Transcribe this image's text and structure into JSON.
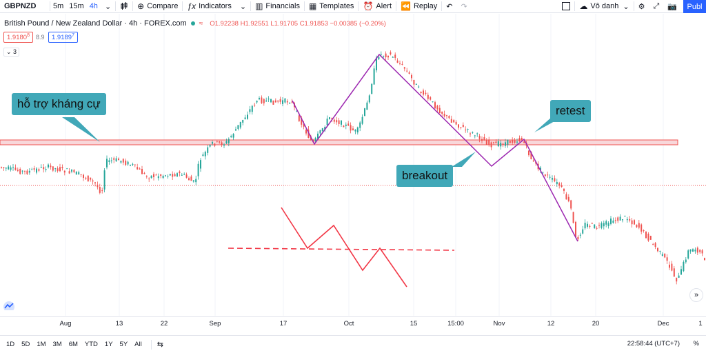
{
  "toolbar": {
    "symbol": "GBPNZD",
    "timeframes": [
      "5m",
      "15m",
      "4h"
    ],
    "compare_label": "Compare",
    "indicators_label": "Indicators",
    "financials_label": "Financials",
    "templates_label": "Templates",
    "alert_label": "Alert",
    "replay_label": "Replay",
    "layout_name": "Vô danh",
    "publish_label": "Publ"
  },
  "legend": {
    "title": "British Pound / New Zealand Dollar · 4h · FOREX.com",
    "ohlc": "O1.92238 H1.92551 L1.91705 C1.91853 −0.00385 (−0.20%)",
    "sell_price": "1.9180",
    "sell_sup": "8",
    "spread": "8.9",
    "buy_price": "1.9189",
    "buy_sup": "7",
    "collapse": "3"
  },
  "colors": {
    "bull": "#26a69a",
    "bear": "#ef5350",
    "pattern_line": "#9c27b0",
    "annotation_red": "#f23645",
    "callout": "#41a8b8",
    "support_zone_fill": "#f8d7da",
    "support_zone_border": "#ef5350"
  },
  "annotations": {
    "support_resistance": "hỗ trợ kháng cự",
    "retest": "retest",
    "breakout": "breakout"
  },
  "x_axis": {
    "labels": [
      "Aug",
      "13",
      "22",
      "Sep",
      "17",
      "Oct",
      "15",
      "15:00",
      "Nov",
      "12",
      "20",
      "Dec",
      "1"
    ]
  },
  "bottom": {
    "ranges": [
      "1D",
      "5D",
      "1M",
      "3M",
      "6M",
      "YTD",
      "1Y",
      "5Y",
      "All"
    ],
    "clock": "22:58:44 (UTC+7)",
    "percent_toggle": "%"
  },
  "icons": {
    "bar_style": "candles-icon",
    "compare": "plus-circle-icon",
    "indicators": "fx-icon",
    "financials": "bar-chart-icon",
    "templates": "templates-icon",
    "alert": "alarm-clock-icon",
    "replay": "rewind-icon",
    "undo": "undo-icon",
    "redo": "redo-icon",
    "fullscreen_square": "square-icon",
    "cloud": "cloud-icon",
    "settings": "gear-icon",
    "expand": "expand-icon",
    "camera": "camera-icon"
  }
}
